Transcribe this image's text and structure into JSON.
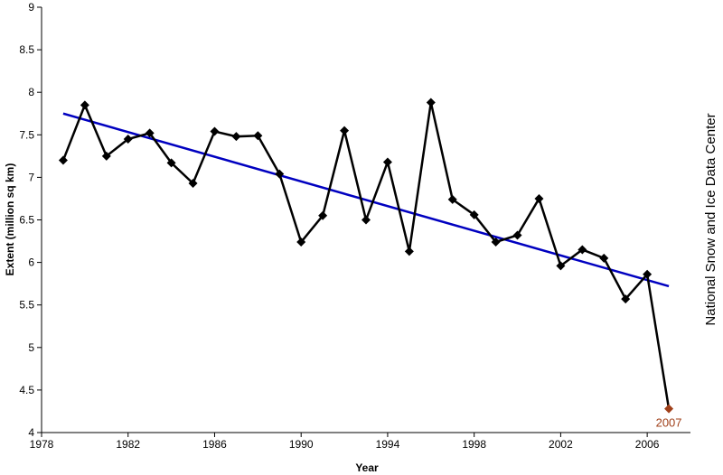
{
  "chart_data": {
    "type": "line",
    "title": "",
    "xlabel": "Year",
    "ylabel": "Extent (million sq km)",
    "credit": "National Snow and Ice Data Center",
    "xlim": [
      1978,
      2008
    ],
    "ylim": [
      4,
      9
    ],
    "x_ticks": [
      "1978",
      "1982",
      "1986",
      "1990",
      "1994",
      "1998",
      "2002",
      "2006"
    ],
    "y_ticks": [
      "4",
      "4.5",
      "5",
      "5.5",
      "6",
      "6.5",
      "7",
      "7.5",
      "8",
      "8.5",
      "9"
    ],
    "grid": false,
    "series": [
      {
        "x": [
          1979,
          1980,
          1981,
          1982,
          1983,
          1984,
          1985,
          1986,
          1987,
          1988,
          1989,
          1990,
          1991,
          1992,
          1993,
          1994,
          1995,
          1996,
          1997,
          1998,
          1999,
          2000,
          2001,
          2002,
          2003,
          2004,
          2005,
          2006,
          2007
        ],
        "y": [
          7.2,
          7.85,
          7.25,
          7.45,
          7.52,
          7.17,
          6.93,
          7.54,
          7.48,
          7.49,
          7.04,
          6.24,
          6.55,
          7.55,
          6.5,
          7.18,
          6.13,
          7.88,
          6.74,
          6.56,
          6.24,
          6.32,
          6.75,
          5.96,
          6.15,
          6.05,
          5.57,
          5.86,
          4.28
        ],
        "color": "#000000"
      },
      {
        "x": [
          1979,
          2007
        ],
        "y": [
          7.75,
          5.72
        ],
        "color": "#0000c0",
        "style": "trend"
      }
    ],
    "highlight": {
      "x": 2007,
      "y": 4.28,
      "label": "2007",
      "color": "#a0401a"
    }
  }
}
